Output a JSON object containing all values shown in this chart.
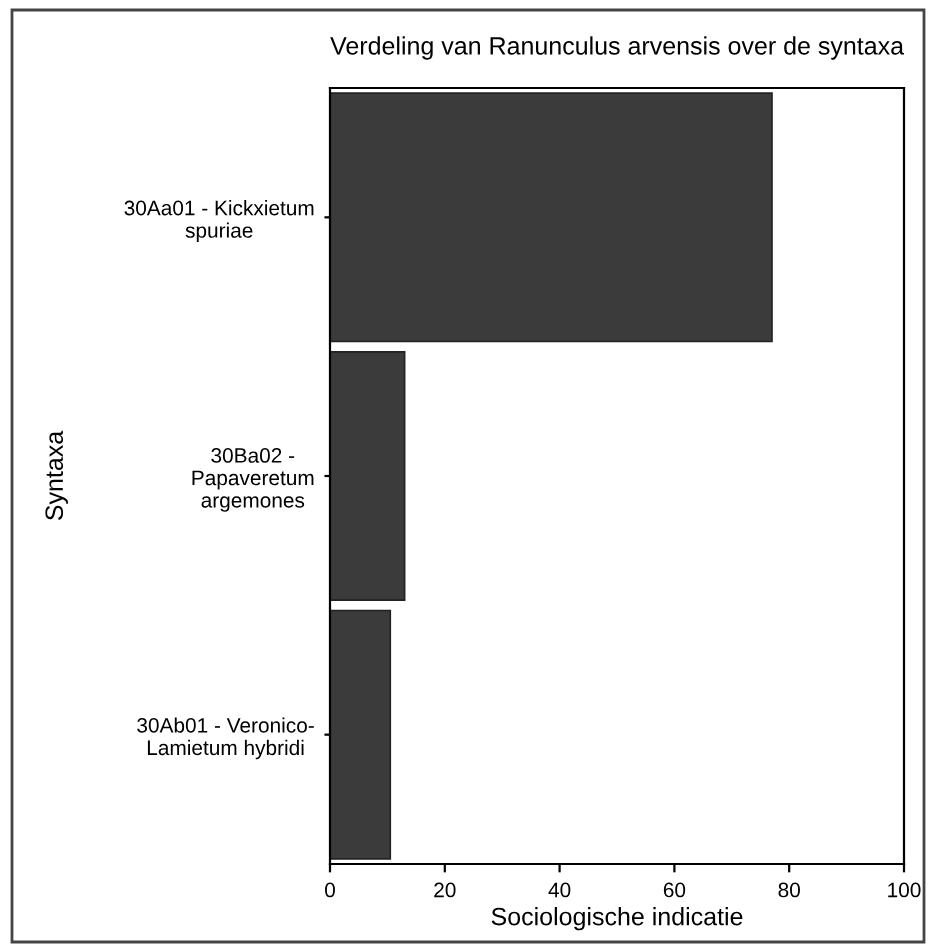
{
  "chart_data": {
    "type": "bar",
    "orientation": "horizontal",
    "title": "Verdeling van Ranunculus arvensis over de syntaxa",
    "categories": [
      "30Aa01 - Kickxietum\nspuriae",
      "30Ba02 -\nPapaveretum\nargemones",
      "30Ab01 - Veronico-\nLamietum hybridi"
    ],
    "values": [
      77,
      13,
      10.5
    ],
    "color": "#3b3b3b",
    "xlim": [
      0,
      100
    ],
    "xticks": [
      0,
      20,
      40,
      60,
      80,
      100
    ],
    "xlabel": "Sociologische indicatie",
    "ylabel": "Syntaxa",
    "grid": false,
    "legend": false
  }
}
